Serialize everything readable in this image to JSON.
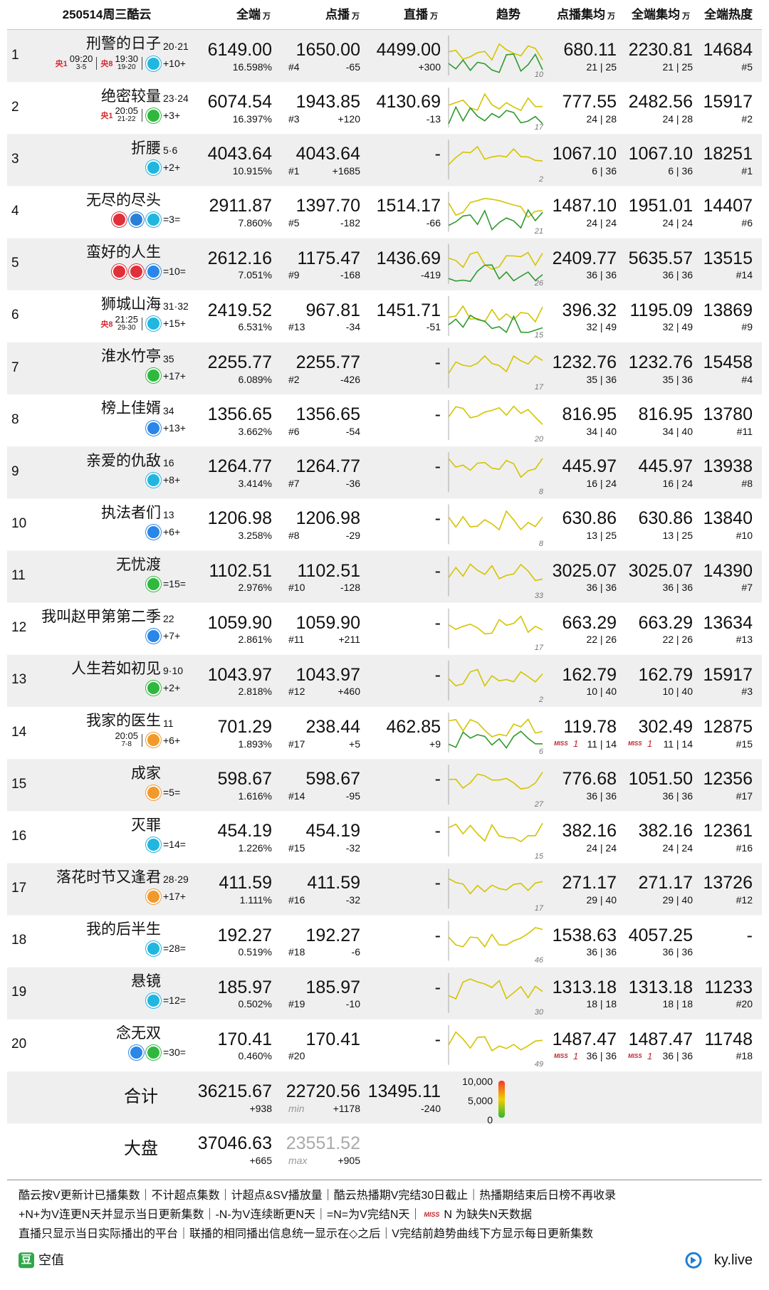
{
  "header": {
    "title": "250514周三酷云",
    "unit": "万",
    "cols": [
      "全端",
      "点播",
      "直播",
      "趋势",
      "点播集均",
      "全端集均",
      "全端热度"
    ]
  },
  "rows": [
    {
      "rank": "1",
      "name": "刑警的日子",
      "ep": "20·21",
      "chg": "+10+",
      "schedule": [
        {
          "ch": "央1",
          "time": "09:20",
          "eps": "3-5"
        },
        {
          "ch": "央8",
          "time": "19:30",
          "eps": "19-20"
        }
      ],
      "q": "6149.00",
      "share": "16.598%",
      "d": "1650.00",
      "drank": "#4",
      "dchg": "-65",
      "z": "4499.00",
      "zchg": "+300",
      "tmax": "10",
      "a1": "680.11",
      "a1s": "21 | 25",
      "a2": "2230.81",
      "a2s": "21 | 25",
      "heat": "14684",
      "hrank": "#5"
    },
    {
      "rank": "2",
      "name": "绝密较量",
      "ep": "23·24",
      "chg": "+3+",
      "schedule": [
        {
          "ch": "央1",
          "time": "20:05",
          "eps": "21-22"
        }
      ],
      "q": "6074.54",
      "share": "16.397%",
      "d": "1943.85",
      "drank": "#3",
      "dchg": "+120",
      "z": "4130.69",
      "zchg": "-13",
      "tmax": "17",
      "a1": "777.55",
      "a1s": "24 | 28",
      "a2": "2482.56",
      "a2s": "24 | 28",
      "heat": "15917",
      "hrank": "#2"
    },
    {
      "rank": "3",
      "name": "折腰",
      "ep": "5·6",
      "chg": "+2+",
      "q": "4043.64",
      "share": "10.915%",
      "d": "4043.64",
      "drank": "#1",
      "dchg": "+1685",
      "z": "-",
      "tmax": "2",
      "a1": "1067.10",
      "a1s": "6 | 36",
      "a2": "1067.10",
      "a2s": "6 | 36",
      "heat": "18251",
      "hrank": "#1"
    },
    {
      "rank": "4",
      "name": "无尽的尽头",
      "chg": "=3=",
      "q": "2911.87",
      "share": "7.860%",
      "d": "1397.70",
      "drank": "#5",
      "dchg": "-182",
      "z": "1514.17",
      "zchg": "-66",
      "tmax": "21",
      "a1": "1487.10",
      "a1s": "24 | 24",
      "a2": "1951.01",
      "a2s": "24 | 24",
      "heat": "14407",
      "hrank": "#6"
    },
    {
      "rank": "5",
      "name": "蛮好的人生",
      "chg": "=10=",
      "q": "2612.16",
      "share": "7.051%",
      "d": "1175.47",
      "drank": "#9",
      "dchg": "-168",
      "z": "1436.69",
      "zchg": "-419",
      "tmax": "26",
      "a1": "2409.77",
      "a1s": "36 | 36",
      "a2": "5635.57",
      "a2s": "36 | 36",
      "heat": "13515",
      "hrank": "#14"
    },
    {
      "rank": "6",
      "name": "狮城山海",
      "ep": "31·32",
      "chg": "+15+",
      "schedule": [
        {
          "ch": "央8",
          "time": "21:25",
          "eps": "29-30"
        }
      ],
      "q": "2419.52",
      "share": "6.531%",
      "d": "967.81",
      "drank": "#13",
      "dchg": "-34",
      "z": "1451.71",
      "zchg": "-51",
      "tmax": "15",
      "a1": "396.32",
      "a1s": "32 | 49",
      "a2": "1195.09",
      "a2s": "32 | 49",
      "heat": "13869",
      "hrank": "#9"
    },
    {
      "rank": "7",
      "name": "淮水竹亭",
      "ep": "35",
      "chg": "+17+",
      "q": "2255.77",
      "share": "6.089%",
      "d": "2255.77",
      "drank": "#2",
      "dchg": "-426",
      "z": "-",
      "tmax": "17",
      "a1": "1232.76",
      "a1s": "35 | 36",
      "a2": "1232.76",
      "a2s": "35 | 36",
      "heat": "15458",
      "hrank": "#4"
    },
    {
      "rank": "8",
      "name": "榜上佳婿",
      "ep": "34",
      "chg": "+13+",
      "q": "1356.65",
      "share": "3.662%",
      "d": "1356.65",
      "drank": "#6",
      "dchg": "-54",
      "z": "-",
      "tmax": "20",
      "a1": "816.95",
      "a1s": "34 | 40",
      "a2": "816.95",
      "a2s": "34 | 40",
      "heat": "13780",
      "hrank": "#11"
    },
    {
      "rank": "9",
      "name": "亲爱的仇敌",
      "ep": "16",
      "chg": "+8+",
      "q": "1264.77",
      "share": "3.414%",
      "d": "1264.77",
      "drank": "#7",
      "dchg": "-36",
      "z": "-",
      "tmax": "8",
      "a1": "445.97",
      "a1s": "16 | 24",
      "a2": "445.97",
      "a2s": "16 | 24",
      "heat": "13938",
      "hrank": "#8"
    },
    {
      "rank": "10",
      "name": "执法者们",
      "ep": "13",
      "chg": "+6+",
      "q": "1206.98",
      "share": "3.258%",
      "d": "1206.98",
      "drank": "#8",
      "dchg": "-29",
      "z": "-",
      "tmax": "8",
      "a1": "630.86",
      "a1s": "13 | 25",
      "a2": "630.86",
      "a2s": "13 | 25",
      "heat": "13840",
      "hrank": "#10"
    },
    {
      "rank": "11",
      "name": "无忧渡",
      "chg": "=15=",
      "q": "1102.51",
      "share": "2.976%",
      "d": "1102.51",
      "drank": "#10",
      "dchg": "-128",
      "z": "-",
      "tmax": "33",
      "a1": "3025.07",
      "a1s": "36 | 36",
      "a2": "3025.07",
      "a2s": "36 | 36",
      "heat": "14390",
      "hrank": "#7"
    },
    {
      "rank": "12",
      "name": "我叫赵甲第第二季",
      "ep": "22",
      "chg": "+7+",
      "q": "1059.90",
      "share": "2.861%",
      "d": "1059.90",
      "drank": "#11",
      "dchg": "+211",
      "z": "-",
      "tmax": "17",
      "a1": "663.29",
      "a1s": "22 | 26",
      "a2": "663.29",
      "a2s": "22 | 26",
      "heat": "13634",
      "hrank": "#13"
    },
    {
      "rank": "13",
      "name": "人生若如初见",
      "ep": "9·10",
      "chg": "+2+",
      "q": "1043.97",
      "share": "2.818%",
      "d": "1043.97",
      "drank": "#12",
      "dchg": "+460",
      "z": "-",
      "tmax": "2",
      "a1": "162.79",
      "a1s": "10 | 40",
      "a2": "162.79",
      "a2s": "10 | 40",
      "heat": "15917",
      "hrank": "#3"
    },
    {
      "rank": "14",
      "name": "我家的医生",
      "ep": "11",
      "chg": "+6+",
      "schedule": [
        {
          "time": "20:05",
          "eps": "7-8"
        }
      ],
      "q": "701.29",
      "share": "1.893%",
      "d": "238.44",
      "drank": "#17",
      "dchg": "+5",
      "z": "462.85",
      "zchg": "+9",
      "tmax": "6",
      "a1": "119.78",
      "a1s": "11 | 14",
      "a2": "302.49",
      "a2s": "11 | 14",
      "heat": "12875",
      "hrank": "#15",
      "miss": "1"
    },
    {
      "rank": "15",
      "name": "成家",
      "chg": "=5=",
      "q": "598.67",
      "share": "1.616%",
      "d": "598.67",
      "drank": "#14",
      "dchg": "-95",
      "z": "-",
      "tmax": "27",
      "a1": "776.68",
      "a1s": "36 | 36",
      "a2": "1051.50",
      "a2s": "36 | 36",
      "heat": "12356",
      "hrank": "#17"
    },
    {
      "rank": "16",
      "name": "灭罪",
      "chg": "=14=",
      "q": "454.19",
      "share": "1.226%",
      "d": "454.19",
      "drank": "#15",
      "dchg": "-32",
      "z": "-",
      "tmax": "15",
      "a1": "382.16",
      "a1s": "24 | 24",
      "a2": "382.16",
      "a2s": "24 | 24",
      "heat": "12361",
      "hrank": "#16"
    },
    {
      "rank": "17",
      "name": "落花时节又逢君",
      "ep": "28·29",
      "chg": "+17+",
      "q": "411.59",
      "share": "1.111%",
      "d": "411.59",
      "drank": "#16",
      "dchg": "-32",
      "z": "-",
      "tmax": "17",
      "a1": "271.17",
      "a1s": "29 | 40",
      "a2": "271.17",
      "a2s": "29 | 40",
      "heat": "13726",
      "hrank": "#12"
    },
    {
      "rank": "18",
      "name": "我的后半生",
      "chg": "=28=",
      "q": "192.27",
      "share": "0.519%",
      "d": "192.27",
      "drank": "#18",
      "dchg": "-6",
      "z": "-",
      "tmax": "46",
      "a1": "1538.63",
      "a1s": "36 | 36",
      "a2": "4057.25",
      "a2s": "36 | 36",
      "heat": "-"
    },
    {
      "rank": "19",
      "name": "悬镜",
      "chg": "=12=",
      "q": "185.97",
      "share": "0.502%",
      "d": "185.97",
      "drank": "#19",
      "dchg": "-10",
      "z": "-",
      "tmax": "30",
      "a1": "1313.18",
      "a1s": "18 | 18",
      "a2": "1313.18",
      "a2s": "18 | 18",
      "heat": "11233",
      "hrank": "#20"
    },
    {
      "rank": "20",
      "name": "念无双",
      "chg": "=30=",
      "q": "170.41",
      "share": "0.460%",
      "d": "170.41",
      "drank": "#20",
      "z": "-",
      "tmax": "49",
      "a1": "1487.47",
      "a1s": "36 | 36",
      "a2": "1487.47",
      "a2s": "36 | 36",
      "heat": "11748",
      "hrank": "#18",
      "miss": "1"
    }
  ],
  "total": {
    "label": "合计",
    "q": "36215.67",
    "qchg": "+938",
    "d": "22720.56",
    "dtag": "min",
    "dchg": "+1178",
    "z": "13495.11",
    "zchg": "-240",
    "scale": [
      "10,000",
      "5,000",
      "0"
    ]
  },
  "market": {
    "label": "大盘",
    "q": "37046.63",
    "qchg": "+665",
    "d": "23551.52",
    "dtag": "max",
    "dchg": "+905"
  },
  "footer": {
    "lines": [
      "酷云按V更新计已播集数｜不计超点集数｜计超点&SV播放量｜酷云热播期V完结30日截止｜热播期结束后日榜不再收录",
      "+N+为V连更N天并显示当日更新集数｜-N-为V连续断更N天｜=N=为V完结N天｜",
      "直播只显示当日实际播出的平台｜联播的相同播出信息统一显示在◇之后｜V完结前趋势曲线下方显示每日更新集数"
    ],
    "miss_tag": "MISS",
    "miss_text": "N 为缺失N天数据",
    "source_icon": "豆",
    "source": "空值",
    "site": "ky.live"
  }
}
